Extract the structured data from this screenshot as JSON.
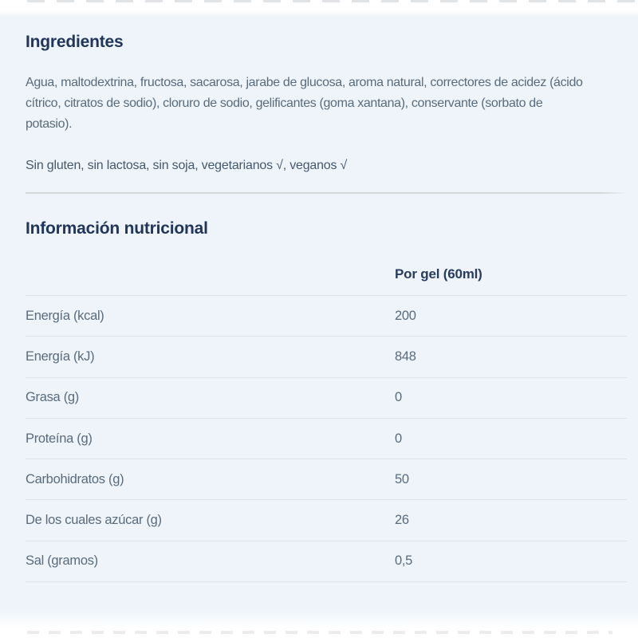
{
  "colors": {
    "panel_background": "#eef4f9",
    "heading_text": "#21365a",
    "body_text": "#5a6b7d",
    "diet_text": "#46586d",
    "divider": "#d6d9dc",
    "row_border": "#dde3e9"
  },
  "ingredients_section": {
    "title": "Ingredientes",
    "body": "Agua, maltodextrina, fructosa, sacarosa, jarabe de glucosa, aroma natural, correctores de acidez (ácido cítrico, citratos de sodio), cloruro de sodio, gelificantes (goma xantana), conservante (sorbato de potasio).",
    "body_lines": [
      "Agua, maltodextrina, fructosa, sacarosa, jarabe de glucosa, aroma natural, correctores de acidez (ácido",
      "cítrico, citratos de sodio), cloruro de sodio, gelificantes (goma xantana), conservante (sorbato de",
      "potasio)."
    ],
    "diet_note": "Sin gluten, sin lactosa, sin soja, vegetarianos √, veganos √"
  },
  "nutrition_section": {
    "title": "Información nutricional",
    "table": {
      "column_header": "Por gel (60ml)",
      "rows": [
        {
          "label": "Energía (kcal)",
          "value": "200"
        },
        {
          "label": "Energía (kJ)",
          "value": "848"
        },
        {
          "label": "Grasa (g)",
          "value": "0"
        },
        {
          "label": "Proteína (g)",
          "value": "0"
        },
        {
          "label": "Carbohidratos (g)",
          "value": "50"
        },
        {
          "label": "De los cuales azúcar (g)",
          "value": "26"
        },
        {
          "label": "Sal (gramos)",
          "value": "0,5"
        }
      ]
    }
  }
}
